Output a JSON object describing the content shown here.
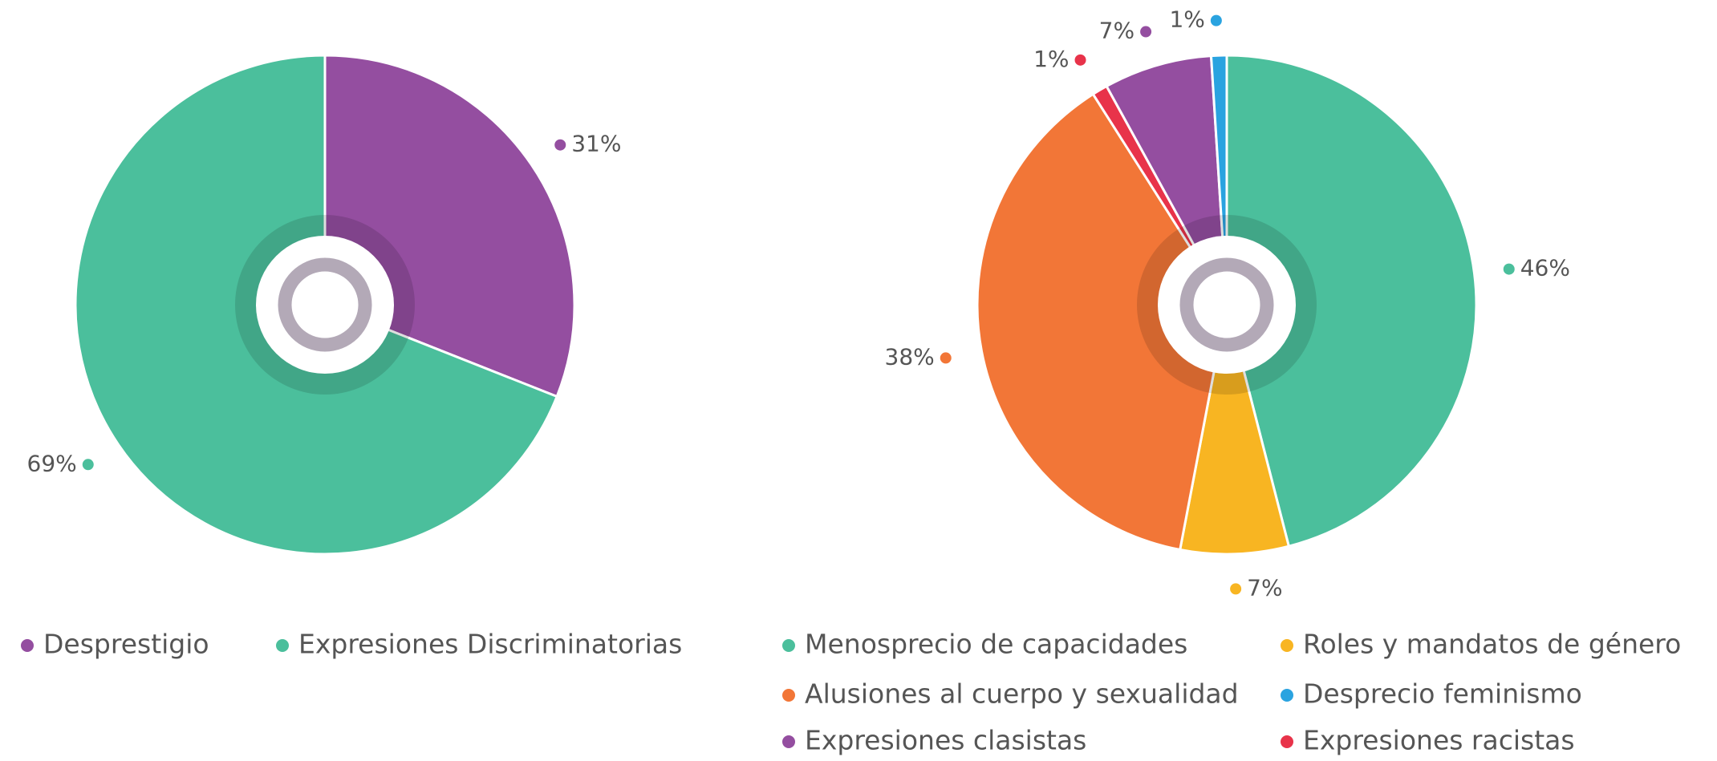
{
  "chart_data": [
    {
      "type": "pie",
      "categories": [
        "Desprestigio",
        "Expresiones Discriminatorias"
      ],
      "values": [
        31,
        69
      ],
      "value_labels": [
        "31%",
        "69%"
      ],
      "colors": [
        "#944ea0",
        "#4bbf9c"
      ]
    },
    {
      "type": "pie",
      "categories": [
        "Menosprecio de capacidades",
        "Roles y mandatos de género",
        "Alusiones al cuerpo y sexualidad",
        "Expresiones racistas",
        "Expresiones clasistas",
        "Desprecio feminismo"
      ],
      "values": [
        46,
        7,
        38,
        1,
        7,
        1
      ],
      "value_labels": [
        "46%",
        "7%",
        "38%",
        "1%",
        "7%",
        "1%"
      ],
      "colors": [
        "#4bbf9c",
        "#f8b522",
        "#f27637",
        "#e8334a",
        "#944ea0",
        "#2aa3e0"
      ]
    }
  ]
}
